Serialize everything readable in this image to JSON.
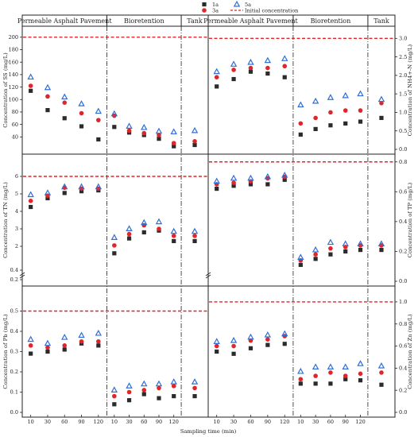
{
  "legend": {
    "items": [
      {
        "label": "1a",
        "marker": "square",
        "color": "#2b2b2b"
      },
      {
        "label": "3a",
        "marker": "circle",
        "color": "#e0262b"
      },
      {
        "label": "5a",
        "marker": "triangle",
        "color": "#2f6fd6"
      },
      {
        "label": "Initial concentration",
        "marker": "dashed-line",
        "color": "#e0262b"
      }
    ]
  },
  "x_axis": {
    "label": "Sampling time (min)",
    "tick_labels": [
      "10",
      "30",
      "60",
      "90",
      "120"
    ]
  },
  "sections": [
    "Permeable Asphalt Pavement",
    "Bioretention",
    "Tank"
  ],
  "chart_data": [
    {
      "type": "scatter",
      "ylabel": "Concentration of SS (mg/L)",
      "ylim": [
        20,
        210
      ],
      "yticks": [
        "40",
        "60",
        "80",
        "100",
        "120",
        "140",
        "160",
        "180",
        "200"
      ],
      "initial": 200,
      "series": [
        {
          "name": "1a",
          "pap": [
            114,
            83,
            70,
            57,
            36
          ],
          "bio": [
            56,
            47,
            43,
            37,
            25
          ],
          "tank": 27
        },
        {
          "name": "3a",
          "pap": [
            122,
            105,
            95,
            78,
            67
          ],
          "bio": [
            74,
            50,
            46,
            43,
            30
          ],
          "tank": 33
        },
        {
          "name": "5a",
          "pap": [
            136,
            119,
            104,
            93,
            81
          ],
          "bio": [
            77,
            57,
            55,
            49,
            48
          ],
          "tank": 50
        }
      ]
    },
    {
      "type": "scatter",
      "ylabel": "Concentration of NH4+-N (mg/L)",
      "ylim": [
        0.0,
        3.2
      ],
      "yticks": [
        "0.0",
        "0.5",
        "1.0",
        "1.5",
        "2.0",
        "2.5",
        "3.0"
      ],
      "initial": 3.0,
      "series": [
        {
          "name": "1a",
          "pap": [
            1.7,
            1.9,
            2.1,
            2.05,
            1.95
          ],
          "bio": [
            0.4,
            0.55,
            0.65,
            0.7,
            0.75
          ],
          "tank": 0.85
        },
        {
          "name": "3a",
          "pap": [
            1.95,
            2.15,
            2.2,
            2.2,
            2.25
          ],
          "bio": [
            0.7,
            0.85,
            1.0,
            1.05,
            1.05
          ],
          "tank": 1.25
        },
        {
          "name": "5a",
          "pap": [
            2.1,
            2.3,
            2.35,
            2.4,
            2.45
          ],
          "bio": [
            1.2,
            1.3,
            1.4,
            1.45,
            1.5
          ],
          "tank": 1.35
        }
      ]
    },
    {
      "type": "scatter",
      "ylabel": "Concentration of TN (mg/L)",
      "ylim": [
        0,
        7
      ],
      "yticks": [
        "0.2",
        "0.4",
        "2",
        "3",
        "4",
        "5",
        "6"
      ],
      "initial": 6.0,
      "series": [
        {
          "name": "1a",
          "pap": [
            4.25,
            4.75,
            5.05,
            5.15,
            5.2
          ],
          "bio": [
            1.6,
            2.45,
            2.8,
            2.9,
            2.3
          ],
          "tank": 2.3
        },
        {
          "name": "3a",
          "pap": [
            4.6,
            4.9,
            5.35,
            5.3,
            5.3
          ],
          "bio": [
            2.05,
            2.7,
            3.2,
            3.0,
            2.6
          ],
          "tank": 2.6
        },
        {
          "name": "5a",
          "pap": [
            4.95,
            5.05,
            5.4,
            5.4,
            5.4
          ],
          "bio": [
            2.5,
            3.0,
            3.35,
            3.4,
            2.85
          ],
          "tank": 2.85
        }
      ]
    },
    {
      "type": "scatter",
      "ylabel": "Concentration of TP (mg/L)",
      "ylim": [
        0.0,
        0.82
      ],
      "yticks": [
        "0.0",
        "0.2",
        "0.4",
        "0.6",
        "0.8"
      ],
      "initial": 0.8,
      "series": [
        {
          "name": "1a",
          "pap": [
            0.62,
            0.64,
            0.65,
            0.65,
            0.68
          ],
          "bio": [
            0.11,
            0.15,
            0.18,
            0.2,
            0.21
          ],
          "tank": 0.21
        },
        {
          "name": "3a",
          "pap": [
            0.65,
            0.66,
            0.67,
            0.69,
            0.7
          ],
          "bio": [
            0.14,
            0.18,
            0.22,
            0.23,
            0.24
          ],
          "tank": 0.24
        },
        {
          "name": "5a",
          "pap": [
            0.67,
            0.69,
            0.69,
            0.7,
            0.71
          ],
          "bio": [
            0.16,
            0.21,
            0.26,
            0.25,
            0.25
          ],
          "tank": 0.25
        }
      ]
    },
    {
      "type": "scatter",
      "ylabel": "Concentration of Pb (mg/L)",
      "ylim": [
        0.0,
        0.6
      ],
      "yticks": [
        "0.0",
        "0.1",
        "0.2",
        "0.3",
        "0.4",
        "0.5"
      ],
      "initial": 0.5,
      "series": [
        {
          "name": "1a",
          "pap": [
            0.29,
            0.3,
            0.31,
            0.34,
            0.33
          ],
          "bio": [
            0.04,
            0.06,
            0.09,
            0.07,
            0.08
          ],
          "tank": 0.08
        },
        {
          "name": "3a",
          "pap": [
            0.33,
            0.32,
            0.33,
            0.35,
            0.35
          ],
          "bio": [
            0.08,
            0.1,
            0.11,
            0.12,
            0.13
          ],
          "tank": 0.12
        },
        {
          "name": "5a",
          "pap": [
            0.36,
            0.34,
            0.37,
            0.38,
            0.39
          ],
          "bio": [
            0.11,
            0.13,
            0.14,
            0.14,
            0.15
          ],
          "tank": 0.15
        }
      ]
    },
    {
      "type": "scatter",
      "ylabel": "Concentration of Zn (mg/L)",
      "ylim": [
        0.0,
        1.1
      ],
      "yticks": [
        "0.0",
        "0.2",
        "0.4",
        "0.6",
        "0.8",
        "1.0"
      ],
      "initial": 1.0,
      "series": [
        {
          "name": "1a",
          "pap": [
            0.55,
            0.53,
            0.58,
            0.61,
            0.62
          ],
          "bio": [
            0.26,
            0.26,
            0.26,
            0.3,
            0.29
          ],
          "tank": 0.25
        },
        {
          "name": "3a",
          "pap": [
            0.6,
            0.6,
            0.65,
            0.66,
            0.69
          ],
          "bio": [
            0.3,
            0.33,
            0.36,
            0.33,
            0.35
          ],
          "tank": 0.36
        },
        {
          "name": "5a",
          "pap": [
            0.64,
            0.65,
            0.68,
            0.7,
            0.71
          ],
          "bio": [
            0.37,
            0.41,
            0.41,
            0.41,
            0.44
          ],
          "tank": 0.42
        }
      ]
    }
  ]
}
